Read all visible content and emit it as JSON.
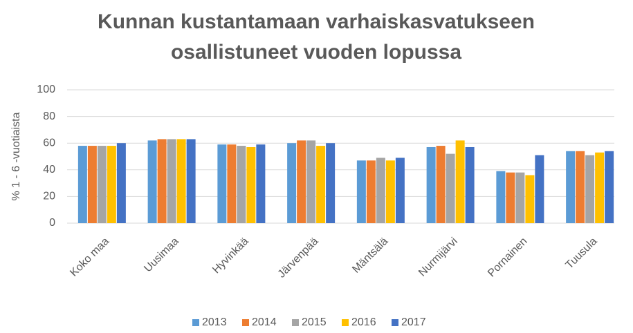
{
  "chart_data": {
    "type": "bar",
    "title": "Kunnan kustantamaan varhaiskasvatukseen osallistuneet vuoden lopussa",
    "y_label": "% 1 - 6 -vuotiaista",
    "categories": [
      "Koko maa",
      "Uusimaa",
      "Hyvinkää",
      "Järvenpää",
      "Mäntsälä",
      "Nurmijärvi",
      "Pornainen",
      "Tuusula"
    ],
    "series": [
      {
        "name": "2013",
        "color": "#5b9bd5",
        "values": [
          58,
          62,
          59,
          60,
          47,
          57,
          39,
          54
        ]
      },
      {
        "name": "2014",
        "color": "#ed7d31",
        "values": [
          58,
          63,
          59,
          62,
          47,
          58,
          38,
          54
        ]
      },
      {
        "name": "2015",
        "color": "#a5a5a5",
        "values": [
          58,
          63,
          58,
          62,
          49,
          52,
          38,
          51
        ]
      },
      {
        "name": "2016",
        "color": "#ffc000",
        "values": [
          58,
          63,
          57,
          58,
          47,
          62,
          36,
          53
        ]
      },
      {
        "name": "2017",
        "color": "#4472c4",
        "values": [
          60,
          63,
          59,
          60,
          49,
          57,
          51,
          54
        ]
      }
    ],
    "ylim": [
      0,
      100
    ],
    "yticks": [
      0,
      20,
      40,
      60,
      80,
      100
    ],
    "grid": true,
    "legend": "bottom"
  }
}
